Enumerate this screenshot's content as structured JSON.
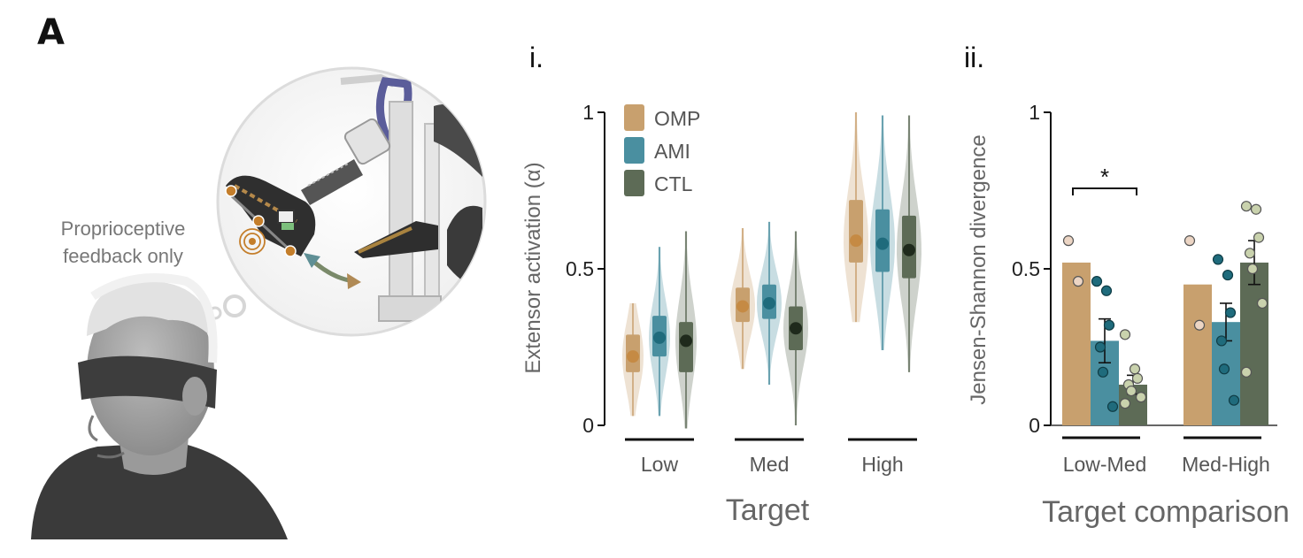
{
  "panel_label": "A",
  "illustration": {
    "caption_line1": "Proprioceptive",
    "caption_line2": "feedback only"
  },
  "colors": {
    "OMP": "#c8a06e",
    "AMI": "#4a8fa0",
    "CTL": "#5d6b56",
    "OMP_dark": "#c58a44",
    "AMI_dark": "#1f6b7c",
    "CTL_dark": "#1f2a1c",
    "CTL_dot_fill": "#c9d2ad"
  },
  "chart_data": [
    {
      "id": "i",
      "label": "i.",
      "type": "violin",
      "title": "",
      "xlabel": "Target",
      "ylabel": "Extensor activation (α)",
      "ylim": [
        0,
        1
      ],
      "yticks": [
        "0",
        "0.5",
        "1"
      ],
      "categories": [
        "Low",
        "Med",
        "High"
      ],
      "legend": [
        "OMP",
        "AMI",
        "CTL"
      ],
      "legend_position": "top-left",
      "series": [
        {
          "name": "OMP",
          "groups": [
            {
              "median": 0.22,
              "q1": 0.17,
              "q3": 0.29,
              "min": 0.03,
              "max": 0.39
            },
            {
              "median": 0.38,
              "q1": 0.33,
              "q3": 0.44,
              "min": 0.18,
              "max": 0.63
            },
            {
              "median": 0.59,
              "q1": 0.52,
              "q3": 0.72,
              "min": 0.33,
              "max": 1.0
            }
          ]
        },
        {
          "name": "AMI",
          "groups": [
            {
              "median": 0.28,
              "q1": 0.22,
              "q3": 0.35,
              "min": 0.03,
              "max": 0.57
            },
            {
              "median": 0.39,
              "q1": 0.34,
              "q3": 0.45,
              "min": 0.13,
              "max": 0.65
            },
            {
              "median": 0.58,
              "q1": 0.49,
              "q3": 0.69,
              "min": 0.24,
              "max": 0.99
            }
          ]
        },
        {
          "name": "CTL",
          "groups": [
            {
              "median": 0.27,
              "q1": 0.17,
              "q3": 0.33,
              "min": -0.01,
              "max": 0.62
            },
            {
              "median": 0.31,
              "q1": 0.24,
              "q3": 0.38,
              "min": 0.0,
              "max": 0.62
            },
            {
              "median": 0.56,
              "q1": 0.47,
              "q3": 0.67,
              "min": 0.17,
              "max": 0.99
            }
          ]
        }
      ]
    },
    {
      "id": "ii",
      "label": "ii.",
      "type": "bar",
      "title": "",
      "xlabel": "Target comparison",
      "ylabel": "Jensen-Shannon divergence",
      "ylim": [
        0,
        1
      ],
      "yticks": [
        "0",
        "0.5",
        "1"
      ],
      "categories": [
        "Low-Med",
        "Med-High"
      ],
      "significance": {
        "label": "*",
        "category": "Low-Med",
        "between": [
          "OMP",
          "CTL"
        ]
      },
      "series": [
        {
          "name": "OMP",
          "values": [
            0.52,
            0.45
          ],
          "errors": [
            null,
            null
          ],
          "points": [
            [
              0.59,
              0.46
            ],
            [
              0.59,
              0.32
            ]
          ]
        },
        {
          "name": "AMI",
          "values": [
            0.27,
            0.33
          ],
          "errors": [
            0.07,
            0.06
          ],
          "points": [
            [
              0.46,
              0.43,
              0.32,
              0.25,
              0.17,
              0.06
            ],
            [
              0.53,
              0.48,
              0.36,
              0.27,
              0.18,
              0.08
            ]
          ]
        },
        {
          "name": "CTL",
          "values": [
            0.13,
            0.52
          ],
          "errors": [
            0.03,
            0.07
          ],
          "points": [
            [
              0.29,
              0.18,
              0.15,
              0.13,
              0.11,
              0.09,
              0.07
            ],
            [
              0.7,
              0.69,
              0.6,
              0.55,
              0.5,
              0.39,
              0.17
            ]
          ]
        }
      ]
    }
  ]
}
